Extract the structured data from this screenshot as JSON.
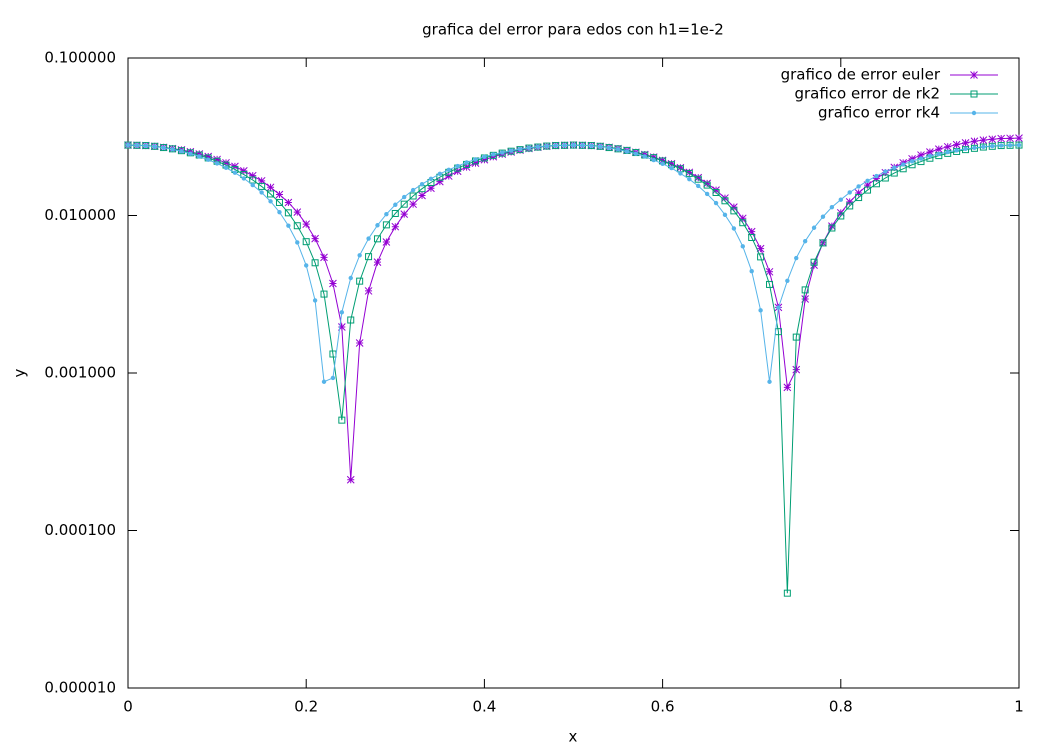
{
  "chart_data": {
    "type": "line",
    "title": "grafica del error para edos con h1=1e-2",
    "x_label": "x",
    "y_label": "y",
    "ylog": true,
    "legend": "top right",
    "xlim": [
      0,
      1
    ],
    "xticks": [
      0,
      0.2,
      0.4,
      0.6,
      0.8,
      1
    ],
    "ylim": [
      1e-05,
      0.1
    ],
    "yticks": [
      {
        "value": 1e-05,
        "label": "0.000010"
      },
      {
        "value": 0.0001,
        "label": "0.000100"
      },
      {
        "value": 0.001,
        "label": "0.001000"
      },
      {
        "value": 0.01,
        "label": "0.010000"
      },
      {
        "value": 0.1,
        "label": "0.100000"
      }
    ],
    "x": [
      0,
      0.01,
      0.02,
      0.03,
      0.04,
      0.05,
      0.06,
      0.07,
      0.08,
      0.09,
      0.1,
      0.11,
      0.12,
      0.13,
      0.14,
      0.15,
      0.16,
      0.17,
      0.18,
      0.19,
      0.2,
      0.21,
      0.22,
      0.23,
      0.24,
      0.25,
      0.26,
      0.27,
      0.28,
      0.29,
      0.3,
      0.31,
      0.32,
      0.33,
      0.34,
      0.35,
      0.36,
      0.37,
      0.38,
      0.39,
      0.4,
      0.41,
      0.42,
      0.43,
      0.44,
      0.45,
      0.46,
      0.47,
      0.48,
      0.49,
      0.5,
      0.51,
      0.52,
      0.53,
      0.54,
      0.55,
      0.56,
      0.57,
      0.58,
      0.59,
      0.6,
      0.61,
      0.62,
      0.63,
      0.64,
      0.65,
      0.66,
      0.67,
      0.68,
      0.69,
      0.7,
      0.71,
      0.72,
      0.73,
      0.74,
      0.75,
      0.76,
      0.77,
      0.78,
      0.79,
      0.8,
      0.81,
      0.82,
      0.83,
      0.84,
      0.85,
      0.86,
      0.87,
      0.88,
      0.89,
      0.9,
      0.91,
      0.92,
      0.93,
      0.94,
      0.95,
      0.96,
      0.97,
      0.98,
      0.99,
      1
    ],
    "series": [
      {
        "name": "grafico de error euler",
        "color": "#9400d3",
        "marker": "star",
        "values": [
          0.028,
          0.0279,
          0.0278,
          0.0275,
          0.0271,
          0.0266,
          0.0261,
          0.0254,
          0.0246,
          0.0237,
          0.0227,
          0.0216,
          0.0205,
          0.0192,
          0.0179,
          0.0166,
          0.0151,
          0.0136,
          0.0121,
          0.0105,
          0.00881,
          0.00713,
          0.00542,
          0.0037,
          0.00196,
          0.00021,
          0.00155,
          0.00332,
          0.00506,
          0.00679,
          0.00849,
          0.0102,
          0.0118,
          0.0134,
          0.0149,
          0.0164,
          0.0178,
          0.0191,
          0.0203,
          0.0215,
          0.0226,
          0.0236,
          0.0245,
          0.0253,
          0.026,
          0.0266,
          0.0271,
          0.0275,
          0.0278,
          0.0279,
          0.028,
          0.0279,
          0.0278,
          0.0275,
          0.0271,
          0.0266,
          0.0259,
          0.0252,
          0.0244,
          0.0235,
          0.0224,
          0.0213,
          0.0201,
          0.0188,
          0.0174,
          0.016,
          0.0145,
          0.0129,
          0.0113,
          0.0096,
          0.0079,
          0.00616,
          0.00439,
          0.00261,
          0.00081,
          0.00105,
          0.00295,
          0.00484,
          0.00671,
          0.00856,
          0.0104,
          0.0122,
          0.0139,
          0.0156,
          0.0172,
          0.0187,
          0.0202,
          0.0216,
          0.0229,
          0.0242,
          0.0253,
          0.0264,
          0.0273,
          0.0282,
          0.0289,
          0.0296,
          0.0301,
          0.0305,
          0.0308,
          0.0309,
          0.031
        ]
      },
      {
        "name": "grafico error de rk2",
        "color": "#009e73",
        "marker": "square",
        "values": [
          0.028,
          0.0279,
          0.0278,
          0.0275,
          0.027,
          0.0265,
          0.0258,
          0.025,
          0.0242,
          0.0232,
          0.0221,
          0.0209,
          0.0196,
          0.0182,
          0.0168,
          0.0153,
          0.0137,
          0.0121,
          0.0104,
          0.00861,
          0.00682,
          0.00501,
          0.00317,
          0.00132,
          0.000502,
          0.00217,
          0.00383,
          0.00548,
          0.00711,
          0.00872,
          0.0103,
          0.0118,
          0.0133,
          0.0148,
          0.0162,
          0.0175,
          0.0188,
          0.02,
          0.0211,
          0.0222,
          0.0232,
          0.0241,
          0.0249,
          0.0256,
          0.0262,
          0.0268,
          0.0272,
          0.0276,
          0.0278,
          0.0279,
          0.028,
          0.0279,
          0.0278,
          0.0275,
          0.027,
          0.0265,
          0.0259,
          0.0251,
          0.0242,
          0.0233,
          0.0222,
          0.021,
          0.0198,
          0.0185,
          0.017,
          0.0156,
          0.014,
          0.0124,
          0.0107,
          0.009,
          0.00725,
          0.00546,
          0.00365,
          0.00183,
          4e-05,
          0.00169,
          0.00337,
          0.00505,
          0.0067,
          0.00833,
          0.00993,
          0.0115,
          0.013,
          0.0145,
          0.0159,
          0.0173,
          0.0186,
          0.0198,
          0.021,
          0.022,
          0.0231,
          0.024,
          0.0248,
          0.0255,
          0.0262,
          0.0267,
          0.0272,
          0.0275,
          0.0278,
          0.0279,
          0.028
        ]
      },
      {
        "name": "grafico error rk4",
        "color": "#56b4e9",
        "marker": "circle",
        "values": [
          0.028,
          0.0279,
          0.0277,
          0.0274,
          0.0269,
          0.0263,
          0.0256,
          0.0247,
          0.0237,
          0.0226,
          0.0214,
          0.0201,
          0.0187,
          0.0172,
          0.0156,
          0.014,
          0.0123,
          0.0105,
          0.00862,
          0.00674,
          0.00482,
          0.00289,
          0.00088,
          0.00093,
          0.00243,
          0.00401,
          0.00559,
          0.00714,
          0.00867,
          0.0102,
          0.0117,
          0.0131,
          0.0145,
          0.0158,
          0.0171,
          0.0184,
          0.0195,
          0.0206,
          0.0217,
          0.0227,
          0.0236,
          0.0244,
          0.0251,
          0.0258,
          0.0264,
          0.0269,
          0.0273,
          0.0276,
          0.0278,
          0.0279,
          0.028,
          0.0279,
          0.0277,
          0.0274,
          0.0269,
          0.0263,
          0.0255,
          0.0247,
          0.0237,
          0.0225,
          0.0213,
          0.02,
          0.0185,
          0.017,
          0.0154,
          0.0137,
          0.012,
          0.0101,
          0.00827,
          0.00637,
          0.00443,
          0.0025,
          0.00088,
          0.0026,
          0.00385,
          0.00537,
          0.00687,
          0.00836,
          0.00982,
          0.0113,
          0.0126,
          0.014,
          0.0153,
          0.0166,
          0.0178,
          0.019,
          0.0201,
          0.0211,
          0.0221,
          0.023,
          0.0239,
          0.0246,
          0.0253,
          0.0259,
          0.0265,
          0.0269,
          0.0273,
          0.0276,
          0.0278,
          0.0279,
          0.028
        ]
      }
    ]
  }
}
